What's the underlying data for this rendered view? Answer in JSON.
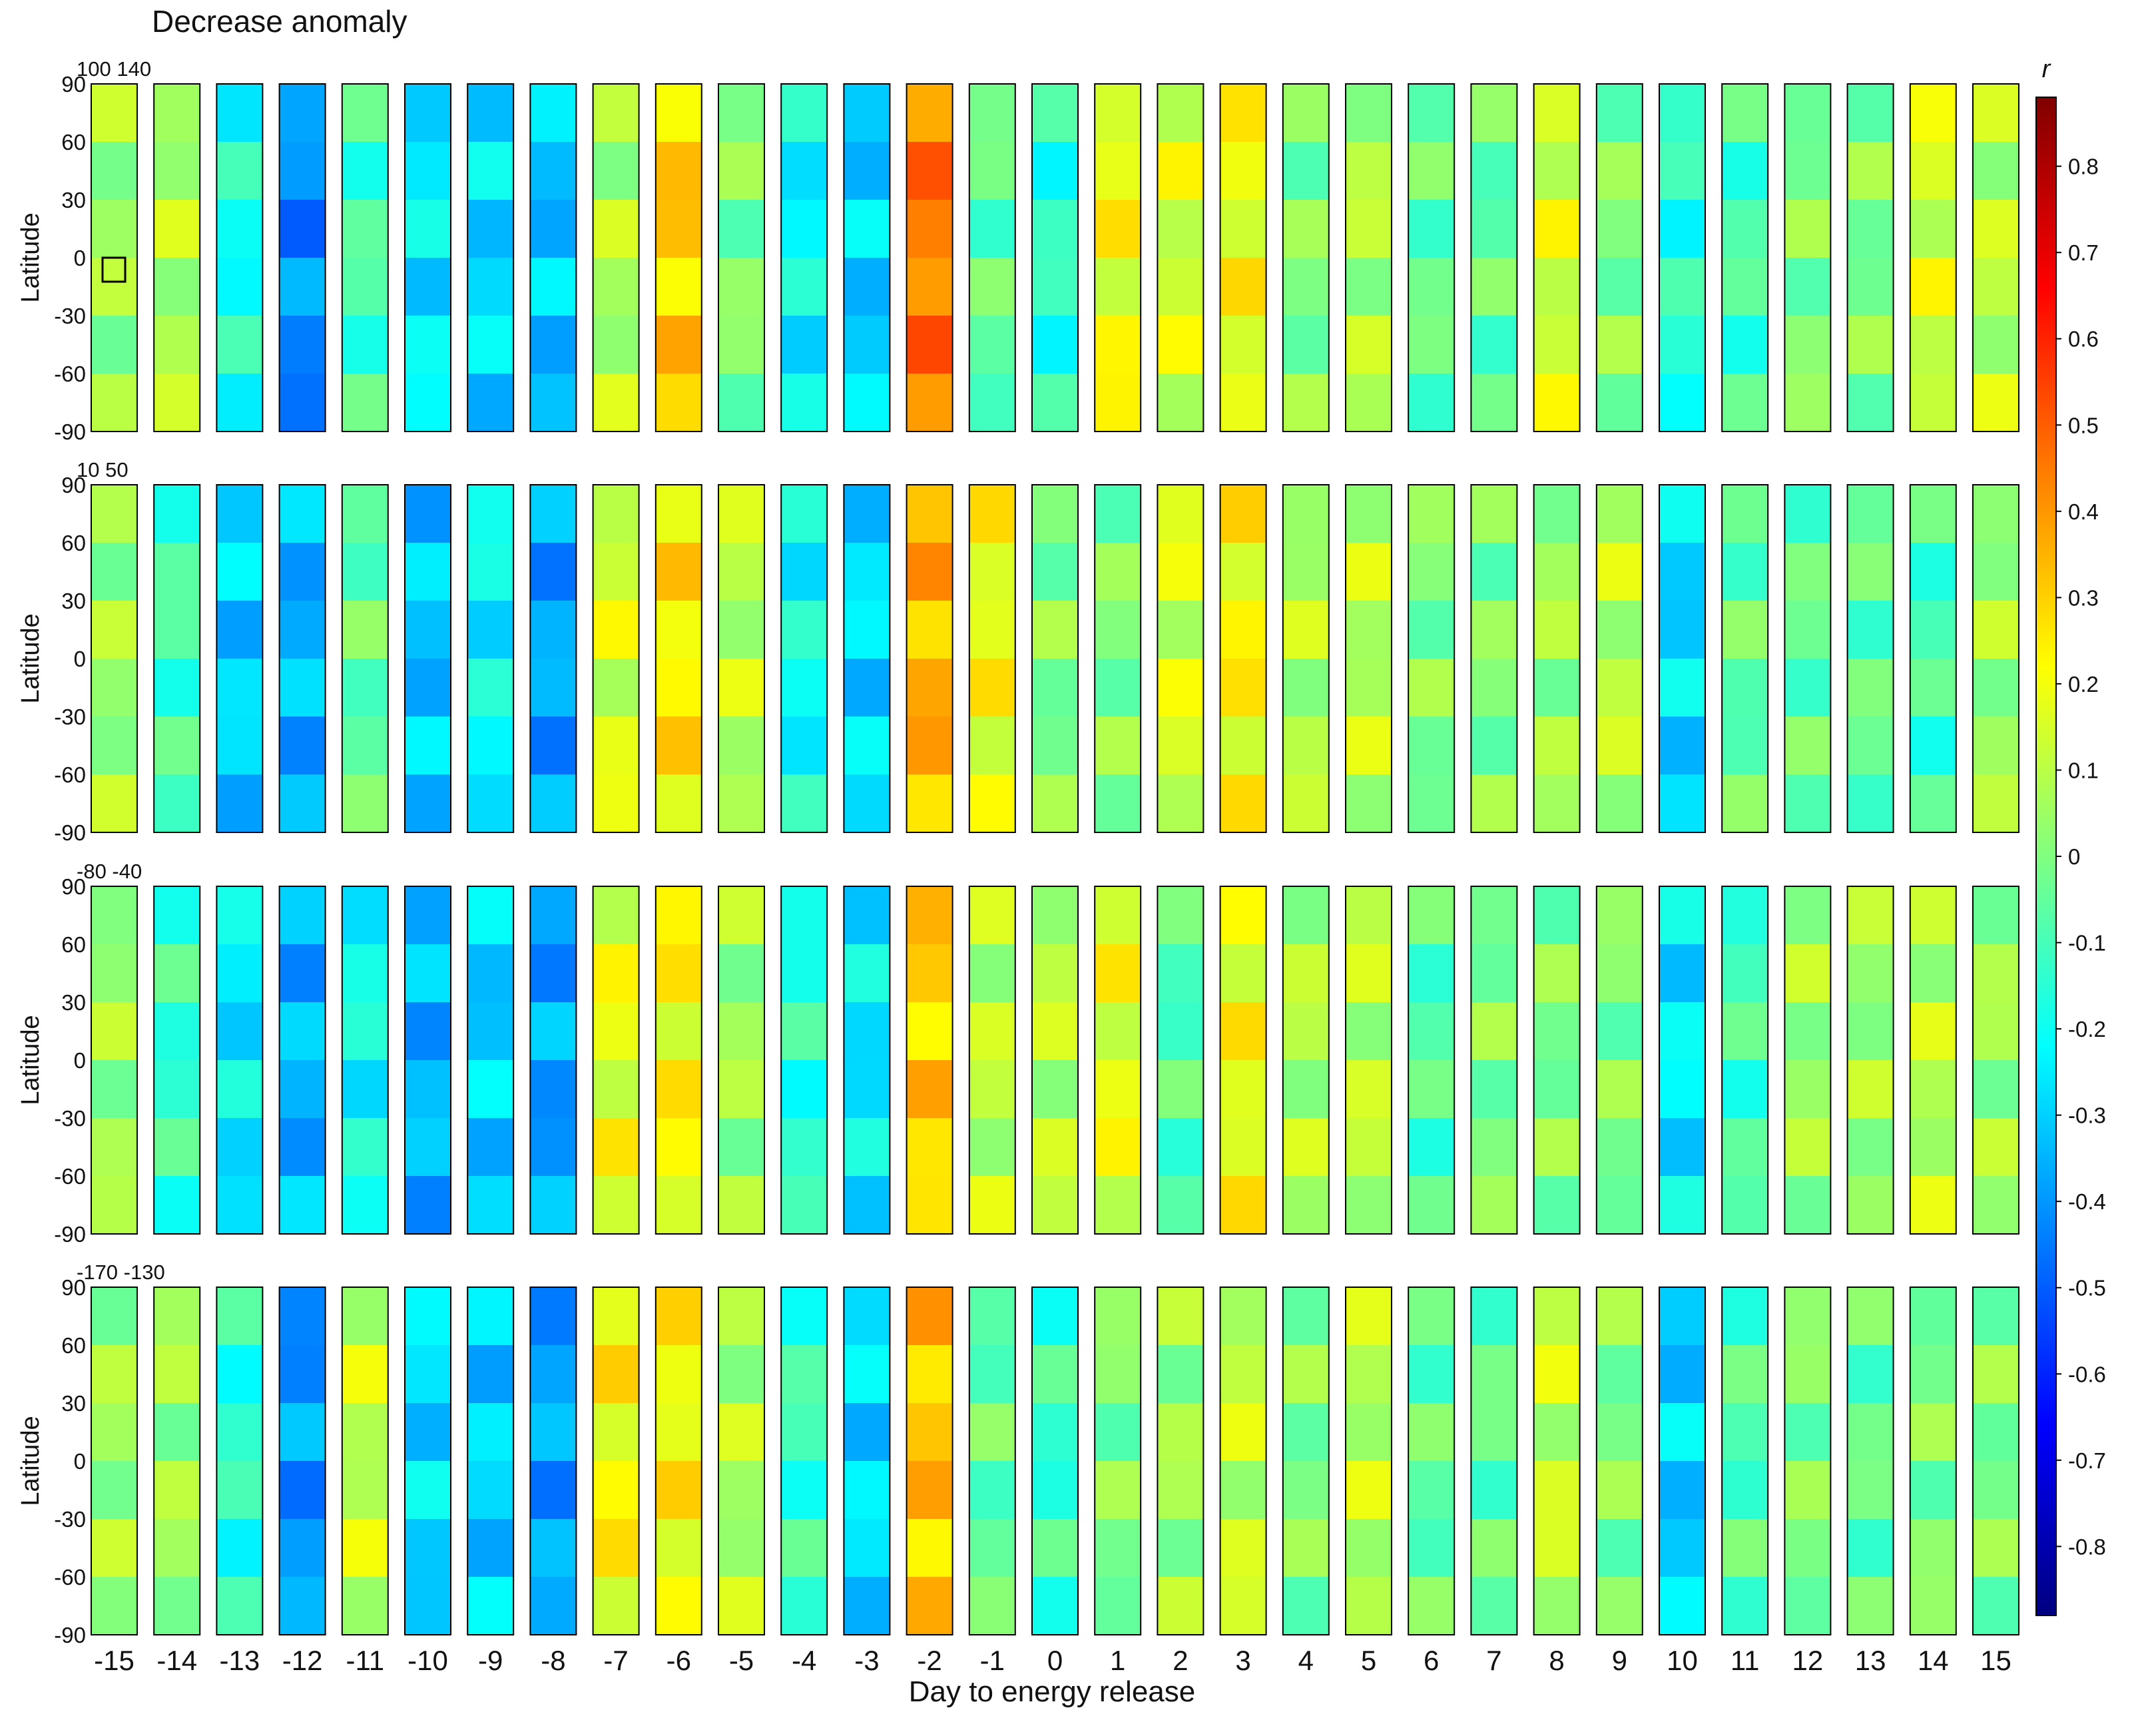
{
  "chart_data": {
    "type": "heatmap",
    "title": "Decrease anomaly",
    "xlabel": "Day to energy release",
    "ylabel": "Latitude",
    "days": [
      -15,
      -14,
      -13,
      -12,
      -11,
      -10,
      -9,
      -8,
      -7,
      -6,
      -5,
      -4,
      -3,
      -2,
      -1,
      0,
      1,
      2,
      3,
      4,
      5,
      6,
      7,
      8,
      9,
      10,
      11,
      12,
      13,
      14,
      15
    ],
    "day_labels": [
      "-15",
      "-14",
      "-13",
      "-12",
      "-11",
      "-10",
      "-9",
      "-8",
      "-7",
      "-6",
      "-5",
      "-4",
      "-3",
      "-2",
      "-1",
      "0",
      "1",
      "2",
      "3",
      "4",
      "5",
      "6",
      "7",
      "8",
      "9",
      "10",
      "11",
      "12",
      "13",
      "14",
      "15"
    ],
    "latitude_ticks": [
      "90",
      "60",
      "30",
      "0",
      "-30",
      "-60",
      "-90"
    ],
    "latitude_values": [
      90,
      60,
      30,
      0,
      -30,
      -60,
      -90
    ],
    "ylim": [
      -90,
      90
    ],
    "rows": [
      {
        "longitude_range": [
          100,
          140
        ],
        "longitude_labels": [
          "100",
          "140"
        ]
      },
      {
        "longitude_range": [
          10,
          50
        ],
        "longitude_labels": [
          "10",
          "50"
        ]
      },
      {
        "longitude_range": [
          -80,
          -40
        ],
        "longitude_labels": [
          "-80",
          "-40"
        ]
      },
      {
        "longitude_range": [
          -170,
          -130
        ],
        "longitude_labels": [
          "-170",
          "-130"
        ]
      }
    ],
    "colorbar": {
      "label": "r",
      "range": [
        -0.88,
        0.88
      ],
      "tick_values": [
        0.8,
        0.7,
        0.6,
        0.5,
        0.4,
        0.3,
        0.2,
        0.1,
        0,
        -0.1,
        -0.2,
        -0.3,
        -0.4,
        -0.5,
        -0.6,
        -0.7,
        -0.8
      ],
      "tick_labels": [
        "0.8",
        "0.7",
        "0.6",
        "0.5",
        "0.4",
        "0.3",
        "0.2",
        "0.1",
        "0",
        "-0.1",
        "-0.2",
        "-0.3",
        "-0.4",
        "-0.5",
        "-0.6",
        "-0.7",
        "-0.8"
      ],
      "colormap": "jet"
    },
    "panel_mean_r": [
      [
        0.05,
        0.08,
        -0.18,
        -0.42,
        -0.1,
        -0.25,
        -0.28,
        -0.32,
        0.08,
        0.3,
        0.0,
        -0.22,
        -0.3,
        0.45,
        -0.05,
        -0.15,
        0.2,
        0.15,
        0.2,
        0.0,
        0.08,
        -0.05,
        -0.05,
        0.15,
        0.0,
        -0.15,
        -0.1,
        0.0,
        0.0,
        0.15,
        0.1
      ],
      [
        0.05,
        -0.1,
        -0.3,
        -0.35,
        -0.05,
        -0.32,
        -0.22,
        -0.38,
        0.15,
        0.25,
        0.1,
        -0.2,
        -0.28,
        0.35,
        0.2,
        0.0,
        0.0,
        0.15,
        0.22,
        0.08,
        0.1,
        0.0,
        0.0,
        0.05,
        0.1,
        -0.28,
        -0.05,
        -0.05,
        -0.05,
        -0.1,
        0.05
      ],
      [
        0.05,
        -0.12,
        -0.25,
        -0.35,
        -0.2,
        -0.35,
        -0.3,
        -0.38,
        0.18,
        0.22,
        0.05,
        -0.15,
        -0.25,
        0.3,
        0.1,
        0.1,
        0.18,
        -0.08,
        0.2,
        0.08,
        0.1,
        -0.08,
        0.0,
        0.0,
        0.0,
        -0.25,
        -0.1,
        0.05,
        0.05,
        0.1,
        0.05
      ],
      [
        0.05,
        0.05,
        -0.15,
        -0.4,
        0.12,
        -0.28,
        -0.3,
        -0.38,
        0.22,
        0.22,
        0.08,
        -0.12,
        -0.28,
        0.32,
        -0.05,
        -0.12,
        0.0,
        0.05,
        0.12,
        0.0,
        0.1,
        -0.05,
        -0.05,
        0.12,
        0.0,
        -0.3,
        -0.08,
        0.0,
        -0.05,
        0.0,
        0.0
      ]
    ]
  }
}
